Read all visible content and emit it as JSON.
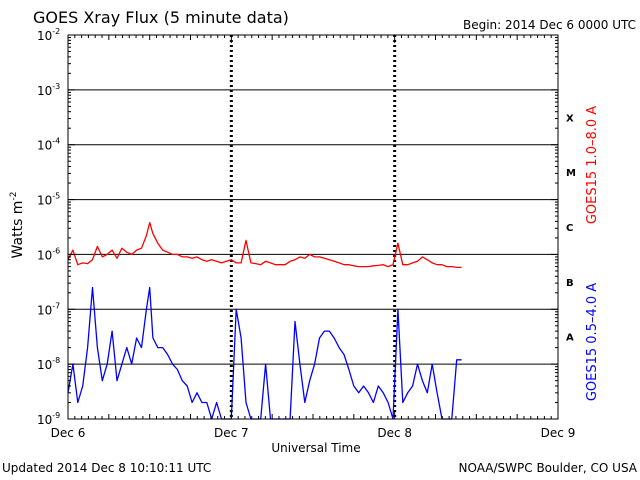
{
  "chart_data": {
    "type": "line",
    "title": "GOES Xray Flux (5 minute data)",
    "begin_label": "Begin:  2014 Dec 6 0000 UTC",
    "ylabel": "Watts m",
    "ylabel_sup": "-2",
    "xlabel": "Universal Time",
    "y_scale": "log",
    "ylim": [
      1e-09,
      0.01
    ],
    "xlim_days": [
      0,
      3
    ],
    "grid": true,
    "x_ticks": [
      "Dec 6",
      "Dec 7",
      "Dec 8",
      "Dec 9"
    ],
    "y_ticks": [
      {
        "base": "10",
        "exp": "-9"
      },
      {
        "base": "10",
        "exp": "-8"
      },
      {
        "base": "10",
        "exp": "-7"
      },
      {
        "base": "10",
        "exp": "-6"
      },
      {
        "base": "10",
        "exp": "-5"
      },
      {
        "base": "10",
        "exp": "-4"
      },
      {
        "base": "10",
        "exp": "-3"
      },
      {
        "base": "10",
        "exp": "-2"
      }
    ],
    "flare_classes": [
      "A",
      "B",
      "C",
      "M",
      "X"
    ],
    "series": [
      {
        "name": "GOES15 1.0–8.0 A",
        "color": "#ff0000",
        "x_days": [
          0.0,
          0.03,
          0.06,
          0.09,
          0.12,
          0.15,
          0.18,
          0.21,
          0.24,
          0.27,
          0.3,
          0.33,
          0.36,
          0.39,
          0.42,
          0.45,
          0.48,
          0.5,
          0.52,
          0.55,
          0.58,
          0.61,
          0.64,
          0.67,
          0.7,
          0.73,
          0.76,
          0.79,
          0.82,
          0.85,
          0.88,
          0.91,
          0.94,
          0.97,
          1.0,
          1.03,
          1.06,
          1.09,
          1.12,
          1.15,
          1.18,
          1.21,
          1.24,
          1.27,
          1.3,
          1.33,
          1.36,
          1.39,
          1.42,
          1.45,
          1.48,
          1.51,
          1.54,
          1.57,
          1.6,
          1.63,
          1.66,
          1.69,
          1.72,
          1.75,
          1.78,
          1.81,
          1.84,
          1.87,
          1.9,
          1.93,
          1.96,
          1.99,
          2.02,
          2.05,
          2.08,
          2.11,
          2.14,
          2.17,
          2.2,
          2.23,
          2.26,
          2.29,
          2.32,
          2.35,
          2.38,
          2.41
        ],
        "values": [
          8e-07,
          1.2e-06,
          6.5e-07,
          7e-07,
          6.8e-07,
          8e-07,
          1.4e-06,
          9e-07,
          1e-06,
          1.2e-06,
          8.5e-07,
          1.3e-06,
          1.1e-06,
          1e-06,
          1.2e-06,
          1.3e-06,
          2.2e-06,
          3.8e-06,
          2.4e-06,
          1.6e-06,
          1.2e-06,
          1.1e-06,
          1e-06,
          1e-06,
          9e-07,
          9e-07,
          8.5e-07,
          9e-07,
          8e-07,
          7.5e-07,
          8e-07,
          7.5e-07,
          7e-07,
          7.5e-07,
          8e-07,
          7e-07,
          7e-07,
          1.8e-06,
          7e-07,
          6.8e-07,
          6.5e-07,
          7.5e-07,
          7e-07,
          6.5e-07,
          6.5e-07,
          6.5e-07,
          7.5e-07,
          8e-07,
          9e-07,
          8.5e-07,
          1e-06,
          9e-07,
          9e-07,
          8.5e-07,
          8e-07,
          7.5e-07,
          7e-07,
          6.5e-07,
          6.5e-07,
          6.2e-07,
          6e-07,
          6e-07,
          6e-07,
          6.2e-07,
          6.3e-07,
          6.5e-07,
          6e-07,
          6.5e-07,
          1.6e-06,
          6.5e-07,
          6.5e-07,
          7e-07,
          7.5e-07,
          9e-07,
          8e-07,
          7e-07,
          6.5e-07,
          6.5e-07,
          6e-07,
          6e-07,
          5.8e-07,
          5.8e-07
        ]
      },
      {
        "name": "GOES15 0.5–4.0 A",
        "color": "#0000ff",
        "x_days": [
          0.0,
          0.03,
          0.06,
          0.09,
          0.12,
          0.15,
          0.18,
          0.21,
          0.24,
          0.27,
          0.3,
          0.33,
          0.36,
          0.39,
          0.42,
          0.45,
          0.48,
          0.5,
          0.52,
          0.55,
          0.58,
          0.61,
          0.64,
          0.67,
          0.7,
          0.73,
          0.76,
          0.79,
          0.82,
          0.85,
          0.88,
          0.91,
          0.94,
          0.97,
          1.0,
          1.03,
          1.06,
          1.09,
          1.12,
          1.15,
          1.18,
          1.21,
          1.24,
          1.27,
          1.3,
          1.33,
          1.36,
          1.39,
          1.42,
          1.45,
          1.48,
          1.51,
          1.54,
          1.57,
          1.6,
          1.63,
          1.66,
          1.69,
          1.72,
          1.75,
          1.78,
          1.81,
          1.84,
          1.87,
          1.9,
          1.93,
          1.96,
          1.99,
          2.02,
          2.05,
          2.08,
          2.11,
          2.14,
          2.17,
          2.2,
          2.23,
          2.26,
          2.29,
          2.32,
          2.35,
          2.38,
          2.41
        ],
        "values": [
          3e-09,
          1e-08,
          2e-09,
          4e-09,
          2e-08,
          2.5e-07,
          2e-08,
          5e-09,
          1e-08,
          4e-08,
          5e-09,
          1e-08,
          2e-08,
          1e-08,
          3e-08,
          2e-08,
          1e-07,
          2.5e-07,
          3e-08,
          2e-08,
          2e-08,
          1.5e-08,
          1e-08,
          8e-09,
          5e-09,
          4e-09,
          2e-09,
          3e-09,
          2e-09,
          2e-09,
          1e-09,
          2e-09,
          1e-09,
          1e-09,
          1e-09,
          1e-07,
          3e-08,
          2e-09,
          1e-09,
          1e-09,
          1e-09,
          1e-08,
          1e-09,
          1e-09,
          1e-09,
          1e-09,
          1e-09,
          6e-08,
          1e-08,
          2e-09,
          5e-09,
          1e-08,
          3e-08,
          4e-08,
          4e-08,
          3e-08,
          2e-08,
          1.5e-08,
          8e-09,
          4e-09,
          3e-09,
          4e-09,
          3e-09,
          2e-09,
          4e-09,
          3e-09,
          2e-09,
          1e-09,
          1e-07,
          2e-09,
          3e-09,
          4e-09,
          1e-08,
          5e-09,
          3e-09,
          1e-08,
          3e-09,
          1e-09,
          1e-09,
          1e-09,
          1.2e-08,
          1.2e-08
        ]
      }
    ]
  },
  "footer": {
    "updated": "Updated 2014 Dec  8 10:10:11 UTC",
    "source": "NOAA/SWPC Boulder, CO USA"
  }
}
